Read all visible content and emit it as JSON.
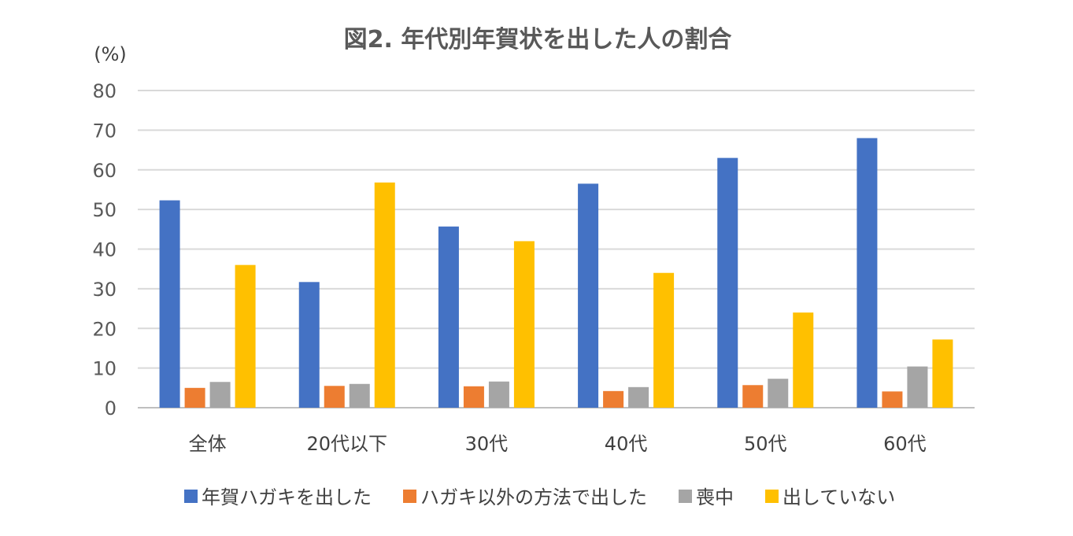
{
  "chart_data": {
    "type": "bar",
    "title": "図2. 年代別年賀状を出した人の割合",
    "ylabel": "(%)",
    "ylim": [
      0,
      80
    ],
    "yticks": [
      0,
      10,
      20,
      30,
      40,
      50,
      60,
      70,
      80
    ],
    "grid": true,
    "legend_position": "bottom",
    "categories": [
      "全体",
      "20代以下",
      "30代",
      "40代",
      "50代",
      "60代"
    ],
    "series": [
      {
        "name": "年賀ハガキを出した",
        "color": "#4472c4",
        "values": [
          52.3,
          31.7,
          45.7,
          56.5,
          63.0,
          68.0
        ]
      },
      {
        "name": "ハガキ以外の方法で出した",
        "color": "#ed7d31",
        "values": [
          5.0,
          5.5,
          5.4,
          4.2,
          5.7,
          4.1
        ]
      },
      {
        "name": "喪中",
        "color": "#a5a5a5",
        "values": [
          6.5,
          6.0,
          6.6,
          5.2,
          7.3,
          10.4
        ]
      },
      {
        "name": "出していない",
        "color": "#ffc000",
        "values": [
          36.0,
          56.8,
          42.0,
          34.0,
          24.0,
          17.2
        ]
      }
    ]
  }
}
